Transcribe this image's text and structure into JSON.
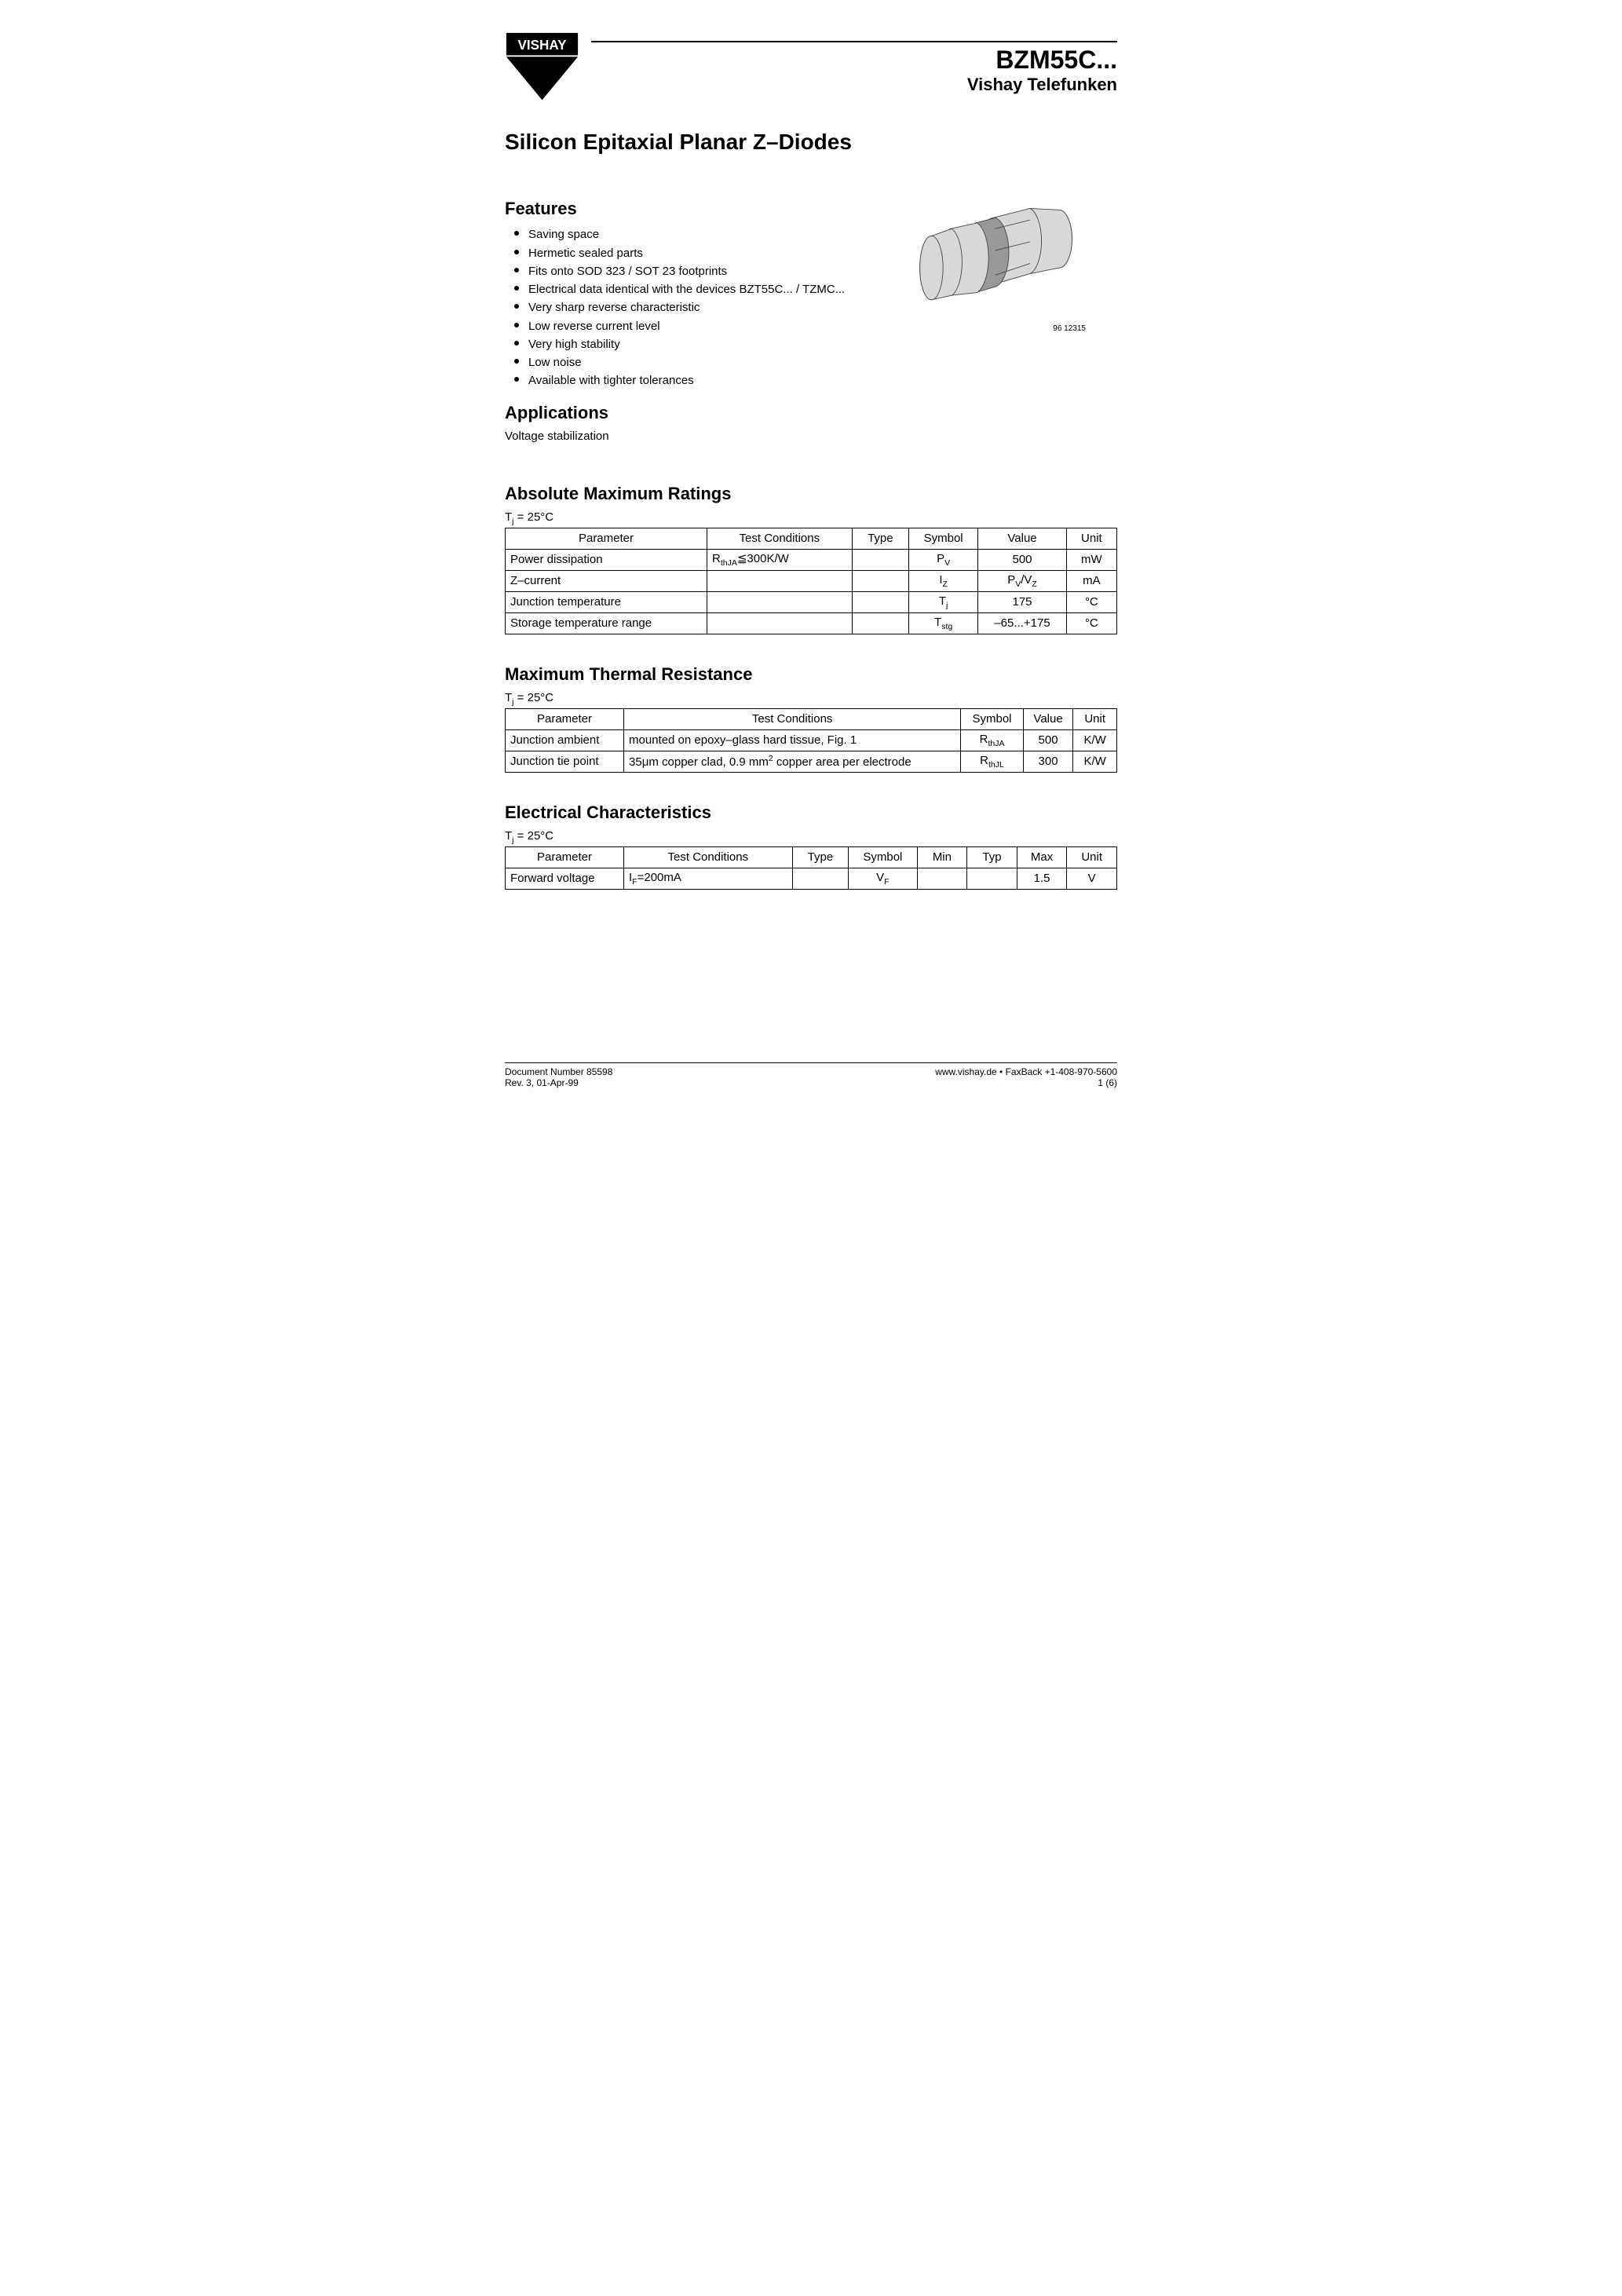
{
  "header": {
    "part_number": "BZM55C...",
    "brand": "Vishay Telefunken",
    "logo_text": "VISHAY"
  },
  "title": "Silicon Epitaxial Planar Z–Diodes",
  "features": {
    "heading": "Features",
    "items": [
      "Saving space",
      "Hermetic sealed parts",
      "Fits onto SOD 323 / SOT 23 footprints",
      "Electrical data identical with the devices BZT55C... / TZMC...",
      "Very sharp reverse characteristic",
      "Low reverse current level",
      "Very high stability",
      "Low noise",
      "Available with tighter tolerances"
    ]
  },
  "component_caption": "96 12315",
  "applications": {
    "heading": "Applications",
    "text": "Voltage stabilization"
  },
  "abs_max": {
    "heading": "Absolute Maximum Ratings",
    "condition": "Tj = 25°C",
    "columns": [
      "Parameter",
      "Test Conditions",
      "Type",
      "Symbol",
      "Value",
      "Unit"
    ],
    "rows": [
      {
        "param": "Power dissipation",
        "cond": "RthJA≦300K/W",
        "type": "",
        "symbol": "P",
        "sub": "V",
        "value": "500",
        "unit": "mW"
      },
      {
        "param": "Z–current",
        "cond": "",
        "type": "",
        "symbol": "I",
        "sub": "Z",
        "value": "PV/VZ",
        "unit": "mA"
      },
      {
        "param": "Junction temperature",
        "cond": "",
        "type": "",
        "symbol": "T",
        "sub": "j",
        "value": "175",
        "unit": "°C"
      },
      {
        "param": "Storage temperature range",
        "cond": "",
        "type": "",
        "symbol": "T",
        "sub": "stg",
        "value": "–65...+175",
        "unit": "°C"
      }
    ]
  },
  "thermal": {
    "heading": "Maximum Thermal Resistance",
    "condition": "Tj = 25°C",
    "columns": [
      "Parameter",
      "Test Conditions",
      "Symbol",
      "Value",
      "Unit"
    ],
    "rows": [
      {
        "param": "Junction ambient",
        "cond": "mounted on epoxy–glass hard tissue, Fig. 1",
        "symbol": "R",
        "sub": "thJA",
        "value": "500",
        "unit": "K/W"
      },
      {
        "param": "Junction tie point",
        "cond": "35μm copper clad, 0.9 mm² copper area per electrode",
        "symbol": "R",
        "sub": "thJL",
        "value": "300",
        "unit": "K/W"
      }
    ]
  },
  "electrical": {
    "heading": "Electrical Characteristics",
    "condition": "Tj = 25°C",
    "columns": [
      "Parameter",
      "Test Conditions",
      "Type",
      "Symbol",
      "Min",
      "Typ",
      "Max",
      "Unit"
    ],
    "rows": [
      {
        "param": "Forward voltage",
        "cond": "IF=200mA",
        "type": "",
        "symbol": "V",
        "sub": "F",
        "min": "",
        "typ": "",
        "max": "1.5",
        "unit": "V"
      }
    ]
  },
  "footer": {
    "doc_number": "Document Number 85598",
    "rev": "Rev. 3, 01-Apr-99",
    "url_line": "www.vishay.de • FaxBack +1-408-970-5600",
    "page": "1 (6)"
  },
  "style": {
    "text_color": "#000000",
    "background": "#ffffff",
    "logo_fill": "#000000",
    "component_fill": "#d9d8d6",
    "component_band": "#999896",
    "component_stroke": "#4a4a48",
    "table_border": "#000000"
  }
}
